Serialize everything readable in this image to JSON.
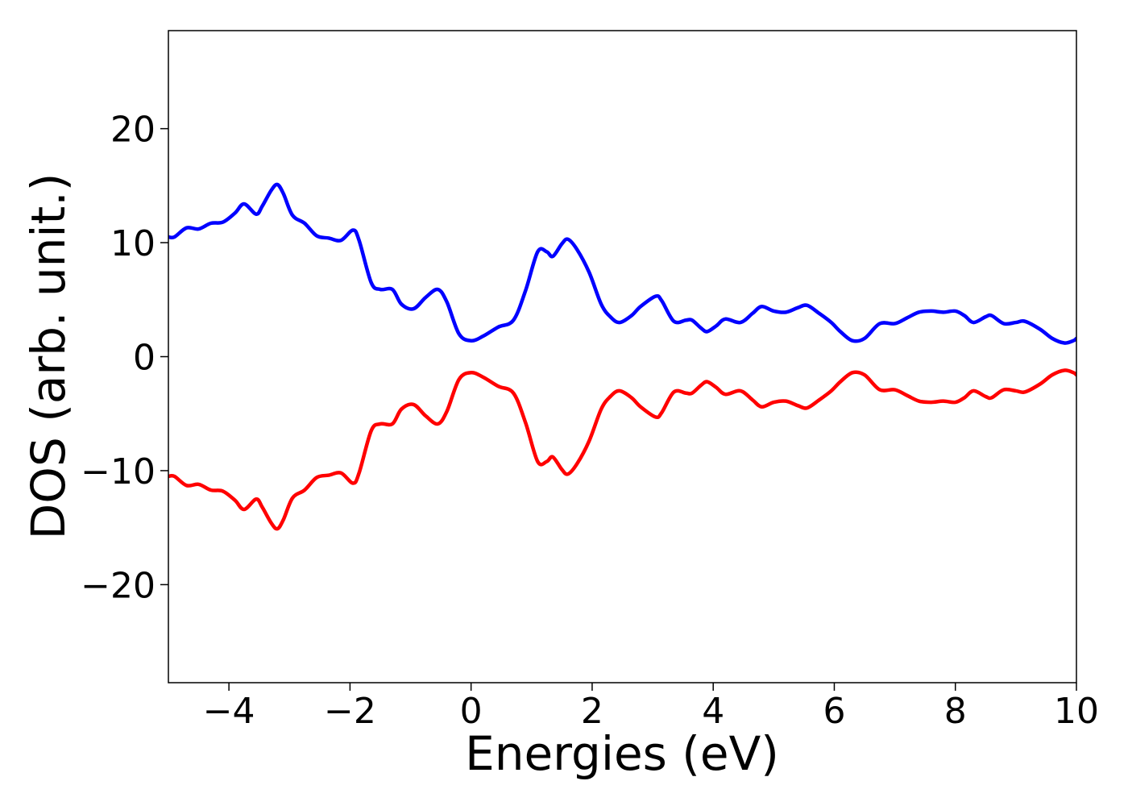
{
  "chart_data": {
    "type": "line",
    "title": "",
    "xlabel": "Energies (eV)",
    "ylabel": "DOS (arb. unit.)",
    "xlim": [
      -5,
      10
    ],
    "ylim": [
      -28.6,
      28.6
    ],
    "grid": false,
    "legend": "none",
    "x_ticks": [
      -4,
      -2,
      0,
      2,
      4,
      6,
      8,
      10
    ],
    "x_tick_labels": [
      "−4",
      "−2",
      "0",
      "2",
      "4",
      "6",
      "8",
      "10"
    ],
    "y_ticks": [
      -20,
      -10,
      0,
      10,
      20
    ],
    "y_tick_labels": [
      "−20",
      "−10",
      "0",
      "10",
      "20"
    ],
    "series": [
      {
        "color": "#0000ff",
        "points": [
          [
            -5.0,
            10.5
          ],
          [
            -4.9,
            10.5
          ],
          [
            -4.7,
            11.3
          ],
          [
            -4.5,
            11.2
          ],
          [
            -4.3,
            11.7
          ],
          [
            -4.1,
            11.8
          ],
          [
            -3.9,
            12.6
          ],
          [
            -3.75,
            13.4
          ],
          [
            -3.55,
            12.5
          ],
          [
            -3.45,
            13.2
          ],
          [
            -3.3,
            14.6
          ],
          [
            -3.2,
            15.1
          ],
          [
            -3.1,
            14.3
          ],
          [
            -2.95,
            12.4
          ],
          [
            -2.75,
            11.7
          ],
          [
            -2.55,
            10.6
          ],
          [
            -2.35,
            10.4
          ],
          [
            -2.15,
            10.2
          ],
          [
            -1.95,
            11.1
          ],
          [
            -1.85,
            10.2
          ],
          [
            -1.65,
            6.5
          ],
          [
            -1.5,
            5.9
          ],
          [
            -1.3,
            5.9
          ],
          [
            -1.15,
            4.6
          ],
          [
            -0.95,
            4.2
          ],
          [
            -0.75,
            5.2
          ],
          [
            -0.55,
            5.9
          ],
          [
            -0.4,
            4.8
          ],
          [
            -0.2,
            2.0
          ],
          [
            0.0,
            1.4
          ],
          [
            0.2,
            1.8
          ],
          [
            0.45,
            2.6
          ],
          [
            0.7,
            3.2
          ],
          [
            0.9,
            5.8
          ],
          [
            1.1,
            9.2
          ],
          [
            1.25,
            9.2
          ],
          [
            1.35,
            8.8
          ],
          [
            1.5,
            9.9
          ],
          [
            1.6,
            10.3
          ],
          [
            1.75,
            9.4
          ],
          [
            1.95,
            7.4
          ],
          [
            2.15,
            4.6
          ],
          [
            2.3,
            3.5
          ],
          [
            2.45,
            3.0
          ],
          [
            2.65,
            3.6
          ],
          [
            2.8,
            4.4
          ],
          [
            3.05,
            5.3
          ],
          [
            3.15,
            4.9
          ],
          [
            3.35,
            3.1
          ],
          [
            3.55,
            3.2
          ],
          [
            3.65,
            3.2
          ],
          [
            3.8,
            2.5
          ],
          [
            3.9,
            2.2
          ],
          [
            4.05,
            2.7
          ],
          [
            4.2,
            3.3
          ],
          [
            4.45,
            3.0
          ],
          [
            4.65,
            3.8
          ],
          [
            4.8,
            4.4
          ],
          [
            5.0,
            4.0
          ],
          [
            5.2,
            3.9
          ],
          [
            5.4,
            4.3
          ],
          [
            5.55,
            4.5
          ],
          [
            5.75,
            3.8
          ],
          [
            5.95,
            3.0
          ],
          [
            6.1,
            2.2
          ],
          [
            6.3,
            1.4
          ],
          [
            6.5,
            1.6
          ],
          [
            6.75,
            2.9
          ],
          [
            7.0,
            2.9
          ],
          [
            7.2,
            3.4
          ],
          [
            7.4,
            3.9
          ],
          [
            7.6,
            4.0
          ],
          [
            7.8,
            3.9
          ],
          [
            8.0,
            4.0
          ],
          [
            8.15,
            3.6
          ],
          [
            8.3,
            3.0
          ],
          [
            8.5,
            3.5
          ],
          [
            8.6,
            3.6
          ],
          [
            8.8,
            2.9
          ],
          [
            9.0,
            3.0
          ],
          [
            9.15,
            3.1
          ],
          [
            9.4,
            2.4
          ],
          [
            9.6,
            1.6
          ],
          [
            9.8,
            1.2
          ],
          [
            9.95,
            1.4
          ],
          [
            10.0,
            1.6
          ]
        ]
      },
      {
        "color": "#ff0000",
        "points": [
          [
            -5.0,
            -10.5
          ],
          [
            -4.9,
            -10.5
          ],
          [
            -4.7,
            -11.3
          ],
          [
            -4.5,
            -11.2
          ],
          [
            -4.3,
            -11.7
          ],
          [
            -4.1,
            -11.8
          ],
          [
            -3.9,
            -12.6
          ],
          [
            -3.75,
            -13.4
          ],
          [
            -3.55,
            -12.5
          ],
          [
            -3.45,
            -13.2
          ],
          [
            -3.3,
            -14.6
          ],
          [
            -3.2,
            -15.1
          ],
          [
            -3.1,
            -14.3
          ],
          [
            -2.95,
            -12.4
          ],
          [
            -2.75,
            -11.7
          ],
          [
            -2.55,
            -10.6
          ],
          [
            -2.35,
            -10.4
          ],
          [
            -2.15,
            -10.2
          ],
          [
            -1.95,
            -11.1
          ],
          [
            -1.85,
            -10.2
          ],
          [
            -1.65,
            -6.5
          ],
          [
            -1.5,
            -5.9
          ],
          [
            -1.3,
            -5.9
          ],
          [
            -1.15,
            -4.6
          ],
          [
            -0.95,
            -4.2
          ],
          [
            -0.75,
            -5.2
          ],
          [
            -0.55,
            -5.9
          ],
          [
            -0.4,
            -4.8
          ],
          [
            -0.2,
            -2.0
          ],
          [
            0.0,
            -1.4
          ],
          [
            0.2,
            -1.8
          ],
          [
            0.45,
            -2.6
          ],
          [
            0.7,
            -3.2
          ],
          [
            0.9,
            -5.8
          ],
          [
            1.1,
            -9.2
          ],
          [
            1.25,
            -9.2
          ],
          [
            1.35,
            -8.8
          ],
          [
            1.5,
            -9.9
          ],
          [
            1.6,
            -10.3
          ],
          [
            1.75,
            -9.4
          ],
          [
            1.95,
            -7.4
          ],
          [
            2.15,
            -4.6
          ],
          [
            2.3,
            -3.5
          ],
          [
            2.45,
            -3.0
          ],
          [
            2.65,
            -3.6
          ],
          [
            2.8,
            -4.4
          ],
          [
            3.05,
            -5.3
          ],
          [
            3.15,
            -4.9
          ],
          [
            3.35,
            -3.1
          ],
          [
            3.55,
            -3.2
          ],
          [
            3.65,
            -3.2
          ],
          [
            3.8,
            -2.5
          ],
          [
            3.9,
            -2.2
          ],
          [
            4.05,
            -2.7
          ],
          [
            4.2,
            -3.3
          ],
          [
            4.45,
            -3.0
          ],
          [
            4.65,
            -3.8
          ],
          [
            4.8,
            -4.4
          ],
          [
            5.0,
            -4.0
          ],
          [
            5.2,
            -3.9
          ],
          [
            5.4,
            -4.3
          ],
          [
            5.55,
            -4.5
          ],
          [
            5.75,
            -3.8
          ],
          [
            5.95,
            -3.0
          ],
          [
            6.1,
            -2.2
          ],
          [
            6.3,
            -1.4
          ],
          [
            6.5,
            -1.6
          ],
          [
            6.75,
            -2.9
          ],
          [
            7.0,
            -2.9
          ],
          [
            7.2,
            -3.4
          ],
          [
            7.4,
            -3.9
          ],
          [
            7.6,
            -4.0
          ],
          [
            7.8,
            -3.9
          ],
          [
            8.0,
            -4.0
          ],
          [
            8.15,
            -3.6
          ],
          [
            8.3,
            -3.0
          ],
          [
            8.5,
            -3.5
          ],
          [
            8.6,
            -3.6
          ],
          [
            8.8,
            -2.9
          ],
          [
            9.0,
            -3.0
          ],
          [
            9.15,
            -3.1
          ],
          [
            9.4,
            -2.4
          ],
          [
            9.6,
            -1.6
          ],
          [
            9.8,
            -1.2
          ],
          [
            9.95,
            -1.4
          ],
          [
            10.0,
            -1.6
          ]
        ]
      }
    ]
  }
}
